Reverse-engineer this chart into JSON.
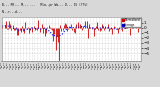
{
  "bg_color": "#d8d8d8",
  "plot_bg_color": "#ffffff",
  "grid_color": "#aaaaaa",
  "bar_color": "#cc0000",
  "line_color": "#0000dd",
  "n_points": 120,
  "ylim": [
    -6.5,
    2.0
  ],
  "yticks": [
    -5,
    -4,
    -3,
    -2,
    -1,
    0,
    1
  ],
  "seed": 42,
  "legend_labels": [
    "Normalized",
    "Average"
  ],
  "legend_colors": [
    "#cc0000",
    "#0000dd"
  ]
}
